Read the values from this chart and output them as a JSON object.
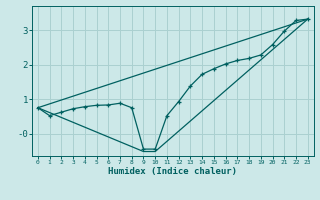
{
  "xlabel": "Humidex (Indice chaleur)",
  "bg_color": "#cce8e8",
  "grid_color": "#aad0d0",
  "line_color": "#006060",
  "xlim": [
    -0.5,
    23.5
  ],
  "ylim": [
    -0.65,
    3.7
  ],
  "yticks": [
    0,
    1,
    2,
    3
  ],
  "ytick_labels": [
    "-0",
    "1",
    "2",
    "3"
  ],
  "xticks": [
    0,
    1,
    2,
    3,
    4,
    5,
    6,
    7,
    8,
    9,
    10,
    11,
    12,
    13,
    14,
    15,
    16,
    17,
    18,
    19,
    20,
    21,
    22,
    23
  ],
  "series1_x": [
    0,
    1,
    2,
    3,
    4,
    5,
    6,
    7,
    8,
    9,
    10,
    11,
    12,
    13,
    14,
    15,
    16,
    17,
    18,
    19,
    20,
    21,
    22,
    23
  ],
  "series1_y": [
    0.75,
    0.52,
    0.62,
    0.72,
    0.78,
    0.82,
    0.83,
    0.88,
    0.75,
    -0.45,
    -0.45,
    0.52,
    0.93,
    1.38,
    1.72,
    1.88,
    2.02,
    2.12,
    2.18,
    2.28,
    2.58,
    2.97,
    3.28,
    3.32
  ],
  "series2_x": [
    0,
    23
  ],
  "series2_y": [
    0.75,
    3.32
  ],
  "series3_x": [
    0,
    9,
    10,
    23
  ],
  "series3_y": [
    0.75,
    -0.52,
    -0.52,
    3.32
  ]
}
